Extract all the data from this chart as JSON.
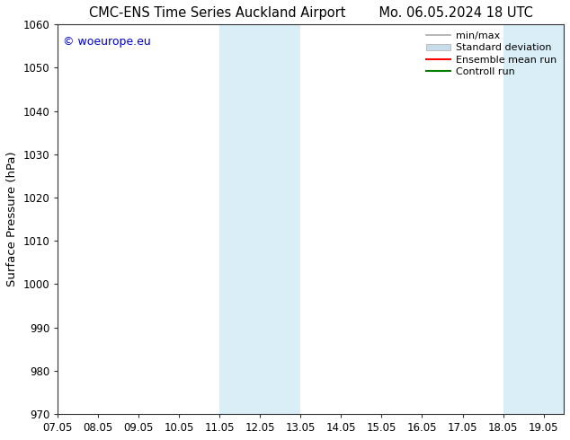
{
  "title": "CMC-ENS Time Series Auckland Airport        Mo. 06.05.2024 18 UTC",
  "ylabel": "Surface Pressure (hPa)",
  "ylim": [
    970,
    1060
  ],
  "yticks": [
    970,
    980,
    990,
    1000,
    1010,
    1020,
    1030,
    1040,
    1050,
    1060
  ],
  "xtick_positions": [
    7.05,
    8.05,
    9.05,
    10.05,
    11.05,
    12.05,
    13.05,
    14.05,
    15.05,
    16.05,
    17.05,
    18.05,
    19.05
  ],
  "xtick_labels": [
    "07.05",
    "08.05",
    "09.05",
    "10.05",
    "11.05",
    "12.05",
    "13.05",
    "14.05",
    "15.05",
    "16.05",
    "17.05",
    "18.05",
    "19.05"
  ],
  "xlim": [
    7.05,
    19.55
  ],
  "shaded_bands": [
    {
      "x_start": 11.05,
      "x_end": 13.05
    },
    {
      "x_start": 18.05,
      "x_end": 19.55
    }
  ],
  "shade_color": "#daeef8",
  "background_color": "#ffffff",
  "watermark_text": "© woeurope.eu",
  "watermark_color": "#0000cc",
  "legend_items": [
    {
      "label": "min/max",
      "type": "line",
      "color": "#aaaaaa",
      "lw": 1.2
    },
    {
      "label": "Standard deviation",
      "type": "patch",
      "color": "#c8dcea"
    },
    {
      "label": "Ensemble mean run",
      "type": "line",
      "color": "#ff0000",
      "lw": 1.5
    },
    {
      "label": "Controll run",
      "type": "line",
      "color": "#008000",
      "lw": 1.5
    }
  ],
  "title_fontsize": 10.5,
  "tick_fontsize": 8.5,
  "ylabel_fontsize": 9.5,
  "legend_fontsize": 8,
  "watermark_fontsize": 9
}
